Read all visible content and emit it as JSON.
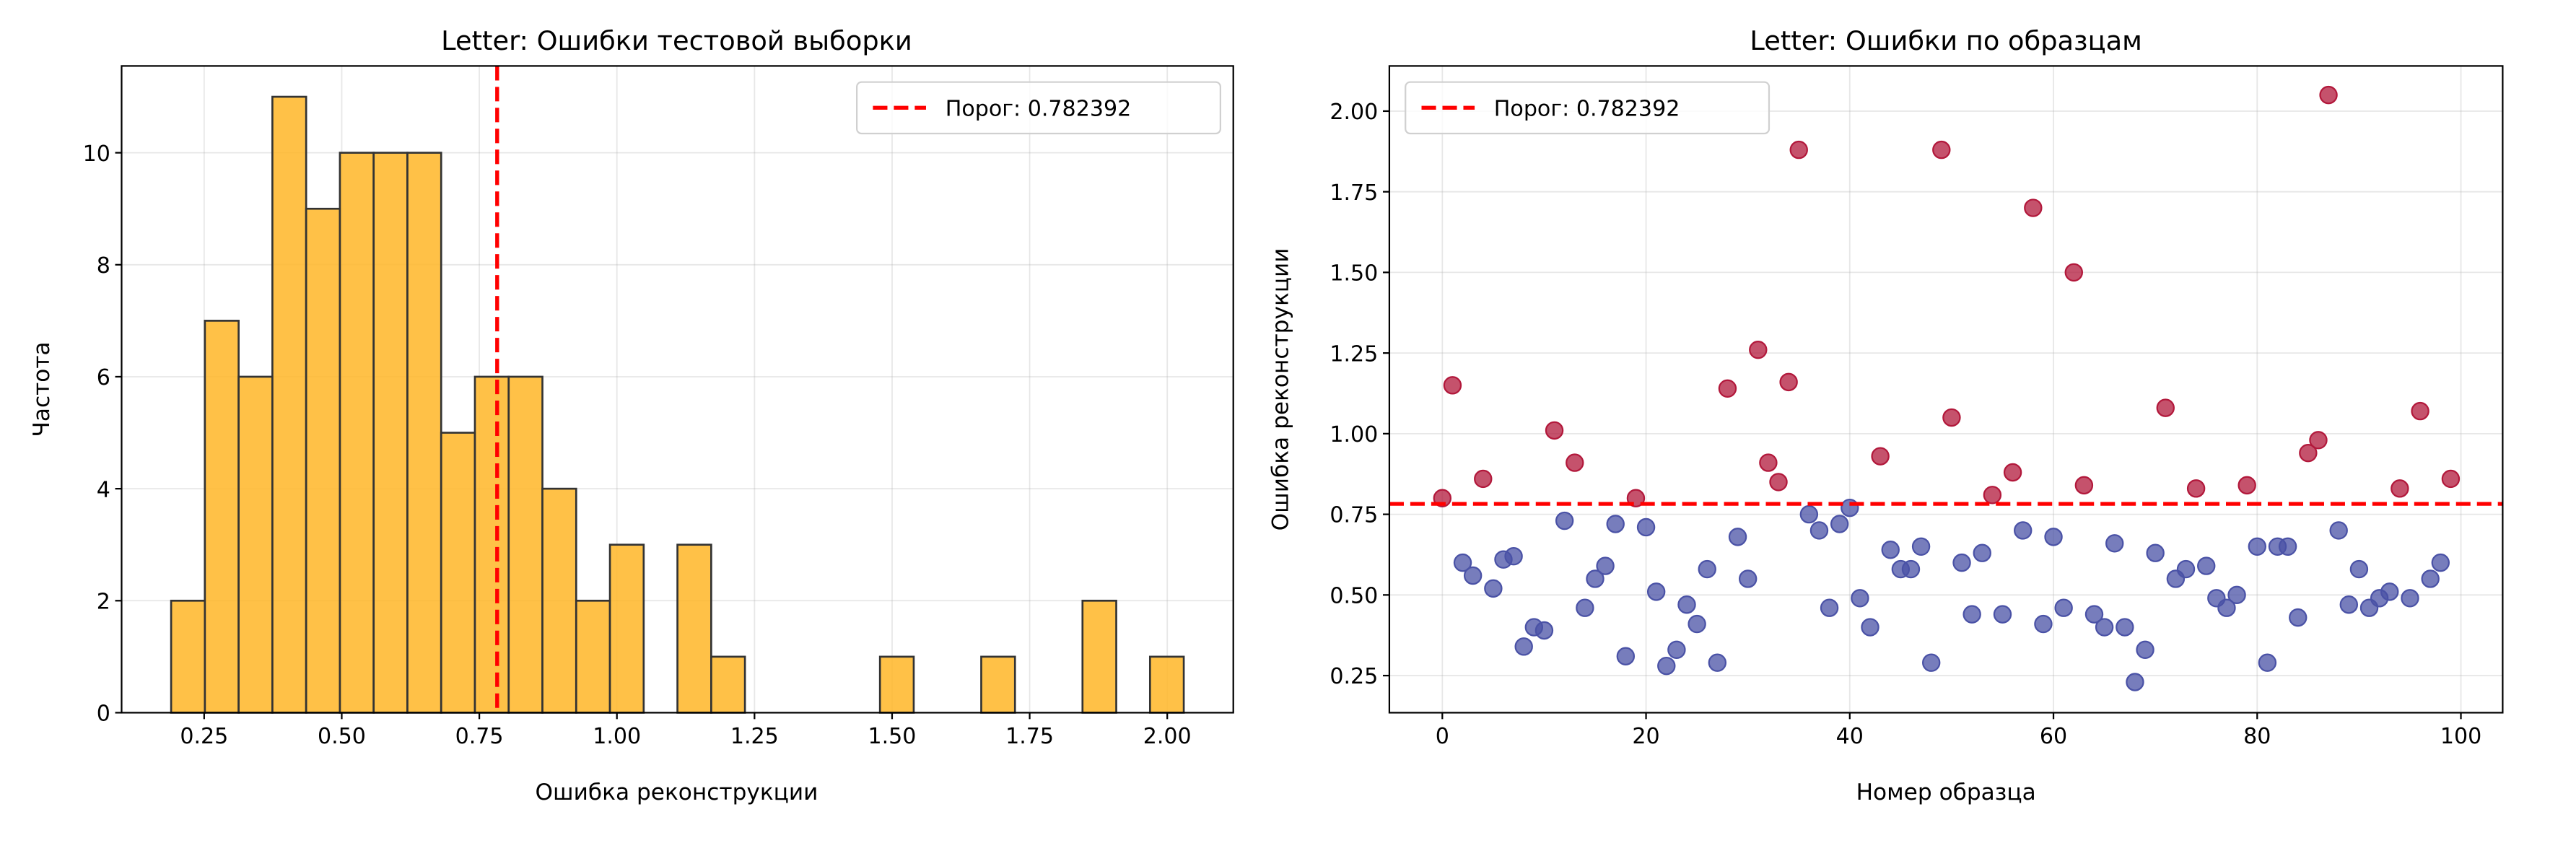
{
  "chart_data": [
    {
      "type": "bar",
      "subtype": "histogram",
      "title": "Letter: Ошибки тестовой выборки",
      "xlabel": "Ошибка реконструкции",
      "ylabel": "Частота",
      "bin_range": [
        0.19,
        2.03
      ],
      "counts": [
        2,
        7,
        6,
        11,
        9,
        10,
        10,
        10,
        5,
        6,
        6,
        4,
        2,
        3,
        0,
        3,
        1,
        0,
        0,
        0,
        0,
        1,
        0,
        0,
        1,
        0,
        0,
        2,
        0,
        1
      ],
      "xlim": [
        0.1,
        2.12
      ],
      "ylim": [
        0,
        11.55
      ],
      "xticks": [
        "0.25",
        "0.50",
        "0.75",
        "1.00",
        "1.25",
        "1.50",
        "1.75",
        "2.00"
      ],
      "xtick_values": [
        0.25,
        0.5,
        0.75,
        1.0,
        1.25,
        1.5,
        1.75,
        2.0
      ],
      "yticks": [
        "0",
        "2",
        "4",
        "6",
        "8",
        "10"
      ],
      "ytick_values": [
        0,
        2,
        4,
        6,
        8,
        10
      ],
      "threshold": 0.782392,
      "legend": {
        "label": "Порог: 0.782392",
        "placement": "upper right"
      },
      "grid": true,
      "colors": {
        "bar": "#ffb627",
        "edge": "#333333",
        "threshold": "#ff0000"
      }
    },
    {
      "type": "scatter",
      "title": "Letter: Ошибки по образцам",
      "xlabel": "Номер образца",
      "ylabel": "Ошибка реконструкции",
      "x_start": 0,
      "y": [
        0.8,
        1.15,
        0.6,
        0.56,
        0.86,
        0.52,
        0.61,
        0.62,
        0.34,
        0.4,
        0.39,
        1.01,
        0.73,
        0.91,
        0.46,
        0.55,
        0.59,
        0.72,
        0.31,
        0.8,
        0.71,
        0.51,
        0.28,
        0.33,
        0.47,
        0.41,
        0.58,
        0.29,
        1.14,
        0.68,
        0.55,
        1.26,
        0.91,
        0.85,
        1.16,
        1.88,
        0.75,
        0.7,
        0.46,
        0.72,
        0.77,
        0.49,
        0.4,
        0.93,
        0.64,
        0.58,
        0.58,
        0.65,
        0.29,
        1.88,
        1.05,
        0.6,
        0.44,
        0.63,
        0.81,
        0.44,
        0.88,
        0.7,
        1.7,
        0.41,
        0.68,
        0.46,
        1.5,
        0.84,
        0.44,
        0.4,
        0.66,
        0.4,
        0.23,
        0.33,
        0.63,
        1.08,
        0.55,
        0.58,
        0.83,
        0.59,
        0.49,
        0.46,
        0.5,
        0.84,
        0.65,
        0.29,
        0.65,
        0.65,
        0.43,
        0.94,
        0.98,
        2.05,
        0.7,
        0.47,
        0.58,
        0.46,
        0.49,
        0.51,
        0.83,
        0.49,
        1.07,
        0.55,
        0.6,
        0.86
      ],
      "xlim": [
        -5.2,
        104.1
      ],
      "ylim": [
        0.135,
        2.14
      ],
      "xticks": [
        "0",
        "20",
        "40",
        "60",
        "80",
        "100"
      ],
      "xtick_values": [
        0,
        20,
        40,
        60,
        80,
        100
      ],
      "yticks": [
        "0.25",
        "0.50",
        "0.75",
        "1.00",
        "1.25",
        "1.50",
        "1.75",
        "2.00"
      ],
      "ytick_values": [
        0.25,
        0.5,
        0.75,
        1.0,
        1.25,
        1.5,
        1.75,
        2.0
      ],
      "threshold": 0.782392,
      "legend": {
        "label": "Порог: 0.782392",
        "placement": "upper left"
      },
      "grid": true,
      "colors": {
        "above": "#b2183b",
        "below": "#4a52a6",
        "threshold": "#ff0000"
      }
    }
  ]
}
